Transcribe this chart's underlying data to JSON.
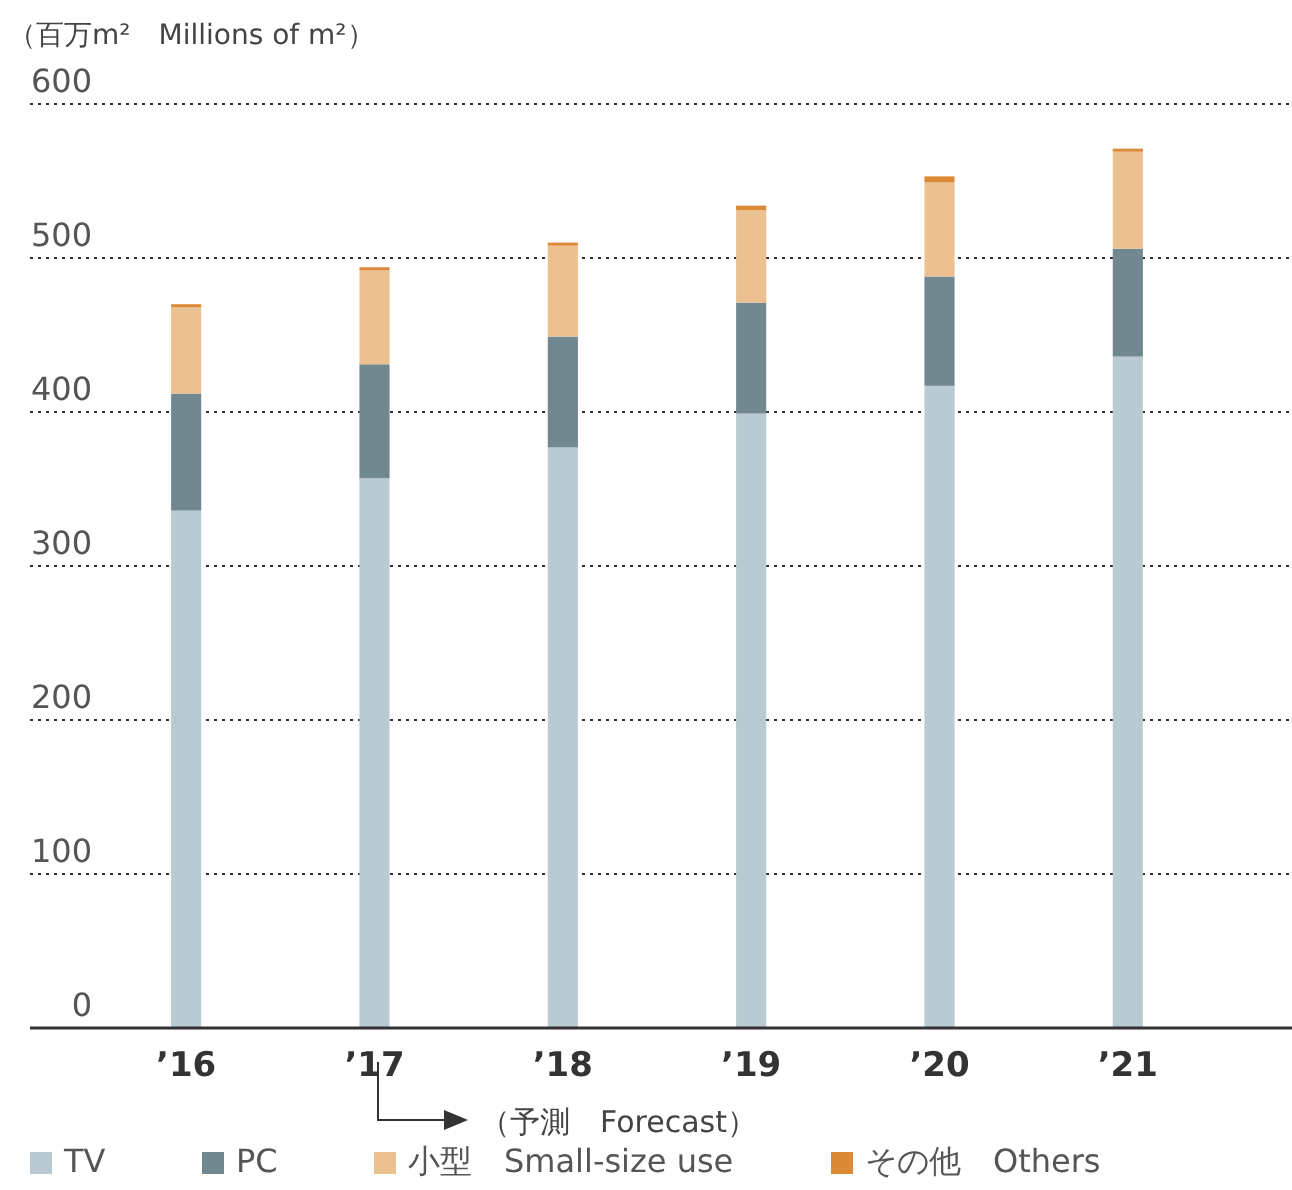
{
  "chart_data": {
    "type": "bar",
    "stacked": true,
    "ylabel": "（百万m²　Millions of m²）",
    "categories": [
      "’16",
      "’17",
      "’18",
      "’19",
      "’20",
      "’21"
    ],
    "series": [
      {
        "name": "TV",
        "color": "#b9cad2",
        "values": [
          336,
          357,
          377,
          399,
          417,
          436
        ]
      },
      {
        "name": "PC",
        "color": "#718891",
        "values": [
          76,
          74,
          72,
          72,
          71,
          70
        ]
      },
      {
        "name": "小型　Small-size use",
        "color": "#ebc192",
        "values": [
          56,
          61,
          59,
          60,
          61,
          63
        ]
      },
      {
        "name": "その他　Others",
        "color": "#dc8a38",
        "values": [
          2,
          2,
          2,
          3,
          4,
          2
        ]
      }
    ],
    "ylim": [
      0,
      600
    ],
    "yticks": [
      0,
      100,
      200,
      300,
      400,
      500,
      600
    ],
    "grid": "y",
    "legend": "bottom",
    "annotations": [
      "（予測　Forecast）"
    ]
  }
}
